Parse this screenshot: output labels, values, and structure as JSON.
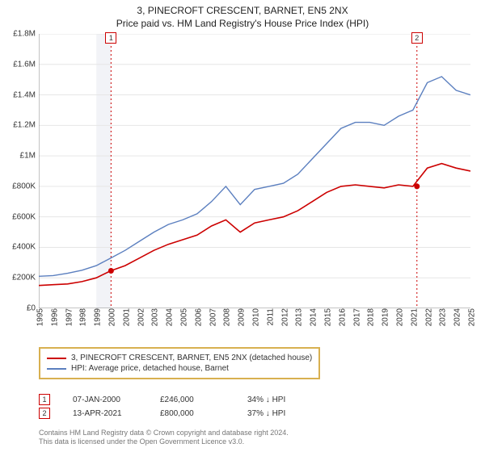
{
  "title": "3, PINECROFT CRESCENT, BARNET, EN5 2NX",
  "subtitle": "Price paid vs. HM Land Registry's House Price Index (HPI)",
  "chart": {
    "type": "line",
    "background_color": "#ffffff",
    "plot_left_shade": {
      "from_year": 1999,
      "to_year": 2000,
      "color": "#f2f3f7"
    },
    "x": {
      "min": 1995,
      "max": 2025,
      "ticks": [
        1995,
        1996,
        1997,
        1998,
        1999,
        2000,
        2001,
        2002,
        2003,
        2004,
        2005,
        2006,
        2007,
        2008,
        2009,
        2010,
        2011,
        2012,
        2013,
        2014,
        2015,
        2016,
        2017,
        2018,
        2019,
        2020,
        2021,
        2022,
        2023,
        2024,
        2025
      ],
      "tick_fontsize": 10,
      "rotation": -90
    },
    "y": {
      "min": 0,
      "max": 1800000,
      "ticks": [
        0,
        200000,
        400000,
        600000,
        800000,
        1000000,
        1200000,
        1400000,
        1600000,
        1800000
      ],
      "tick_labels": [
        "£0",
        "£200K",
        "£400K",
        "£600K",
        "£800K",
        "£1M",
        "£1.2M",
        "£1.4M",
        "£1.6M",
        "£1.8M"
      ],
      "tick_fontsize": 10,
      "grid": true,
      "grid_color": "#e6e6e6",
      "axis_color": "#888"
    },
    "series": [
      {
        "name": "price_paid",
        "label": "3, PINECROFT CRESCENT, BARNET, EN5 2NX (detached house)",
        "color": "#cc0000",
        "line_width": 1.6,
        "x": [
          1995,
          1996,
          1997,
          1998,
          1999,
          2000,
          2001,
          2002,
          2003,
          2004,
          2005,
          2006,
          2007,
          2008,
          2009,
          2010,
          2011,
          2012,
          2013,
          2014,
          2015,
          2016,
          2017,
          2018,
          2019,
          2020,
          2021,
          2022,
          2023,
          2024,
          2025
        ],
        "y": [
          150000,
          155000,
          160000,
          175000,
          200000,
          246000,
          280000,
          330000,
          380000,
          420000,
          450000,
          480000,
          540000,
          580000,
          500000,
          560000,
          580000,
          600000,
          640000,
          700000,
          760000,
          800000,
          810000,
          800000,
          790000,
          810000,
          800000,
          920000,
          950000,
          920000,
          900000
        ]
      },
      {
        "name": "hpi",
        "label": "HPI: Average price, detached house, Barnet",
        "color": "#5b7fbf",
        "line_width": 1.4,
        "x": [
          1995,
          1996,
          1997,
          1998,
          1999,
          2000,
          2001,
          2002,
          2003,
          2004,
          2005,
          2006,
          2007,
          2008,
          2009,
          2010,
          2011,
          2012,
          2013,
          2014,
          2015,
          2016,
          2017,
          2018,
          2019,
          2020,
          2021,
          2022,
          2023,
          2024,
          2025
        ],
        "y": [
          210000,
          215000,
          230000,
          250000,
          280000,
          330000,
          380000,
          440000,
          500000,
          550000,
          580000,
          620000,
          700000,
          800000,
          680000,
          780000,
          800000,
          820000,
          880000,
          980000,
          1080000,
          1180000,
          1220000,
          1220000,
          1200000,
          1260000,
          1300000,
          1480000,
          1520000,
          1430000,
          1400000
        ]
      }
    ],
    "markers": [
      {
        "n": "1",
        "year": 2000.02,
        "value": 246000,
        "color": "#cc0000"
      },
      {
        "n": "2",
        "year": 2021.28,
        "value": 800000,
        "color": "#cc0000"
      }
    ],
    "marker_vertical_line": {
      "stroke": "#cc0000",
      "dash": "2,3",
      "width": 1
    }
  },
  "legend": {
    "border_color": "#d8b050",
    "items": [
      {
        "color": "#cc0000",
        "label": "3, PINECROFT CRESCENT, BARNET, EN5 2NX (detached house)"
      },
      {
        "color": "#5b7fbf",
        "label": "HPI: Average price, detached house, Barnet"
      }
    ]
  },
  "transactions": [
    {
      "n": "1",
      "date": "07-JAN-2000",
      "price": "£246,000",
      "delta": "34% ↓ HPI"
    },
    {
      "n": "2",
      "date": "13-APR-2021",
      "price": "£800,000",
      "delta": "37% ↓ HPI"
    }
  ],
  "footer": {
    "line1": "Contains HM Land Registry data © Crown copyright and database right 2024.",
    "line2": "This data is licensed under the Open Government Licence v3.0."
  }
}
